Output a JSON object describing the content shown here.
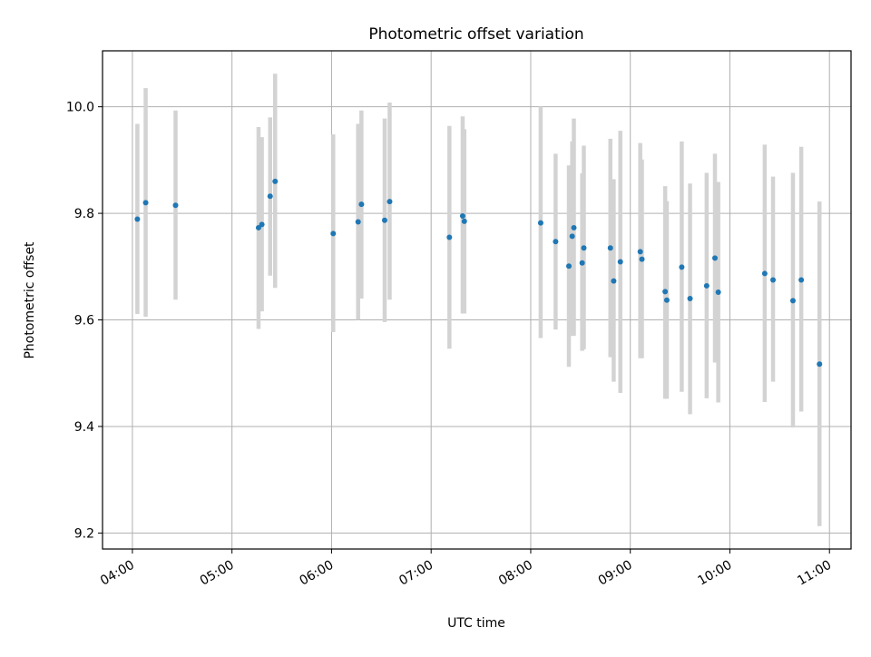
{
  "chart_data": {
    "type": "scatter",
    "title": "Photometric offset variation",
    "xlabel": "UTC time",
    "ylabel": "Photometric offset",
    "x_tick_labels": [
      "04:00",
      "05:00",
      "06:00",
      "07:00",
      "08:00",
      "09:00",
      "10:00",
      "11:00"
    ],
    "y_tick_labels": [
      "9.2",
      "9.4",
      "9.6",
      "9.8",
      "10.0"
    ],
    "xlim": [
      "03:42",
      "11:13"
    ],
    "ylim": [
      9.17,
      10.105
    ],
    "grid": true,
    "error_bar_color": "#d3d3d3",
    "point_color": "#1f77b4",
    "points": [
      {
        "t": "04:03",
        "y": 9.789,
        "lo": 9.611,
        "hi": 9.968
      },
      {
        "t": "04:08",
        "y": 9.82,
        "lo": 9.606,
        "hi": 10.035
      },
      {
        "t": "04:26",
        "y": 9.815,
        "lo": 9.638,
        "hi": 9.993
      },
      {
        "t": "05:16",
        "y": 9.773,
        "lo": 9.583,
        "hi": 9.962
      },
      {
        "t": "05:18",
        "y": 9.779,
        "lo": 9.616,
        "hi": 9.943
      },
      {
        "t": "05:23",
        "y": 9.832,
        "lo": 9.683,
        "hi": 9.98
      },
      {
        "t": "05:26",
        "y": 9.86,
        "lo": 9.66,
        "hi": 10.062
      },
      {
        "t": "06:01",
        "y": 9.762,
        "lo": 9.577,
        "hi": 9.948
      },
      {
        "t": "06:16",
        "y": 9.784,
        "lo": 9.6,
        "hi": 9.968
      },
      {
        "t": "06:18",
        "y": 9.817,
        "lo": 9.64,
        "hi": 9.993
      },
      {
        "t": "06:32",
        "y": 9.787,
        "lo": 9.596,
        "hi": 9.978
      },
      {
        "t": "06:35",
        "y": 9.822,
        "lo": 9.638,
        "hi": 10.008
      },
      {
        "t": "07:11",
        "y": 9.755,
        "lo": 9.546,
        "hi": 9.964
      },
      {
        "t": "07:19",
        "y": 9.795,
        "lo": 9.612,
        "hi": 9.982
      },
      {
        "t": "07:20",
        "y": 9.785,
        "lo": 9.612,
        "hi": 9.958
      },
      {
        "t": "08:06",
        "y": 9.782,
        "lo": 9.566,
        "hi": 10.0
      },
      {
        "t": "08:15",
        "y": 9.747,
        "lo": 9.582,
        "hi": 9.912
      },
      {
        "t": "08:23",
        "y": 9.701,
        "lo": 9.512,
        "hi": 9.89
      },
      {
        "t": "08:25",
        "y": 9.757,
        "lo": 9.57,
        "hi": 9.935
      },
      {
        "t": "08:26",
        "y": 9.773,
        "lo": 9.57,
        "hi": 9.978
      },
      {
        "t": "08:31",
        "y": 9.707,
        "lo": 9.542,
        "hi": 9.875
      },
      {
        "t": "08:32",
        "y": 9.735,
        "lo": 9.545,
        "hi": 9.927
      },
      {
        "t": "08:48",
        "y": 9.735,
        "lo": 9.53,
        "hi": 9.94
      },
      {
        "t": "08:50",
        "y": 9.673,
        "lo": 9.484,
        "hi": 9.864
      },
      {
        "t": "08:54",
        "y": 9.709,
        "lo": 9.463,
        "hi": 9.955
      },
      {
        "t": "09:06",
        "y": 9.728,
        "lo": 9.528,
        "hi": 9.932
      },
      {
        "t": "09:07",
        "y": 9.714,
        "lo": 9.528,
        "hi": 9.901
      },
      {
        "t": "09:21",
        "y": 9.653,
        "lo": 9.452,
        "hi": 9.851
      },
      {
        "t": "09:22",
        "y": 9.637,
        "lo": 9.452,
        "hi": 9.823
      },
      {
        "t": "09:31",
        "y": 9.699,
        "lo": 9.465,
        "hi": 9.935
      },
      {
        "t": "09:36",
        "y": 9.64,
        "lo": 9.423,
        "hi": 9.856
      },
      {
        "t": "09:46",
        "y": 9.664,
        "lo": 9.453,
        "hi": 9.876
      },
      {
        "t": "09:51",
        "y": 9.716,
        "lo": 9.52,
        "hi": 9.912
      },
      {
        "t": "09:53",
        "y": 9.652,
        "lo": 9.445,
        "hi": 9.859
      },
      {
        "t": "10:21",
        "y": 9.687,
        "lo": 9.446,
        "hi": 9.929
      },
      {
        "t": "10:26",
        "y": 9.675,
        "lo": 9.484,
        "hi": 9.869
      },
      {
        "t": "10:38",
        "y": 9.636,
        "lo": 9.398,
        "hi": 9.876
      },
      {
        "t": "10:43",
        "y": 9.675,
        "lo": 9.428,
        "hi": 9.925
      },
      {
        "t": "10:54",
        "y": 9.517,
        "lo": 9.213,
        "hi": 9.822
      }
    ]
  }
}
